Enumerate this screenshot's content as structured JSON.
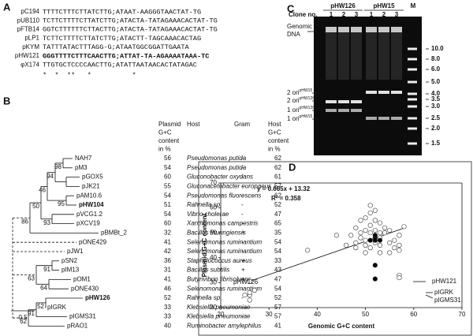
{
  "panel_a": {
    "label": "A",
    "rows": [
      [
        "pC194",
        "TTTTCTTTCTTATCTTG;ATAAT-AAGGGTAACTAT-TG"
      ],
      [
        "pUB110",
        "TCTTCTTTTCTTATCTTG;ATACTA-TATAGAAACACTAT-TG"
      ],
      [
        "pFTB14",
        "GGTCTTTTTTCTTACTTG;ATACTA-TATAGAAACACTAT-TG"
      ],
      [
        "pLP1",
        "TCTTCTTTTCTTATCTTG;ATACTT-TAGCAAACACTAG"
      ],
      [
        "pKYM",
        "TATTTATACTTTAGG-G;ATAATGGCGGATTGAATA"
      ],
      [
        "pHW121",
        "GGGTTTTCTTTCAACTTG;ATTAT-TA-AGAAAATAAA-TC"
      ],
      [
        "φX174",
        "TTGTGCTCCCCAACTTG;ATATTAATAACACTATAGAC"
      ]
    ],
    "conservation": "*  *  **   *          *"
  },
  "panel_b": {
    "label": "B",
    "headers": [
      [
        "Plasmid",
        "G+C",
        "content",
        "in %"
      ],
      [
        "Host"
      ],
      [
        "Gram"
      ],
      [
        "Host",
        "G+C",
        "content",
        "in %"
      ]
    ],
    "rows": [
      [
        "NAH7",
        56,
        "Pseudomonas putida",
        "-",
        62
      ],
      [
        "pM3",
        54,
        "Pseudomonas putida",
        "-",
        62
      ],
      [
        "pGOX5",
        60,
        "Gluconobacter oxydans",
        "-",
        61
      ],
      [
        "pJK21",
        55,
        "Gluconacetobacter europaeus",
        "-",
        57
      ],
      [
        "pAM10.6",
        54,
        "Pseudomonas fluorescens",
        "-",
        62
      ],
      [
        "pHW104",
        51,
        "Rahnella sp.",
        "-",
        52
      ],
      [
        "pVCG1.2",
        54,
        "Vibrio cholerae",
        "-",
        47
      ],
      [
        "pXCV19",
        60,
        "Xanthomonas campestris",
        "-",
        65
      ],
      [
        "pBMBt_2",
        32,
        "Bacillus thuringiensis",
        "+",
        35
      ],
      [
        "pONE429",
        41,
        "Selenomonas ruminantium",
        "-",
        54
      ],
      [
        "pJW1",
        42,
        "Selenomonas ruminantium",
        "-",
        54
      ],
      [
        "pSN2",
        36,
        "Staphylococcus aureus",
        "+",
        33
      ],
      [
        "pIM13",
        31,
        "Bacillus subtilis",
        "+",
        43
      ],
      [
        "pOM1",
        41,
        "Butyrivibrio fibrisolvens",
        "+",
        47
      ],
      [
        "pONE430",
        46,
        "Selenomonas ruminantium",
        "-",
        54
      ],
      [
        "pHW126",
        52,
        "Rahnella sp.",
        "-",
        52
      ],
      [
        "pIGRK",
        33,
        "Klebsiella pneumoniae",
        "-",
        57
      ],
      [
        "pIGMS31",
        33,
        "Klebsiella pneumoniae",
        "-",
        57
      ],
      [
        "pRAO1",
        40,
        "Ruminobacter amylophilus",
        "-",
        41
      ]
    ],
    "bootstrap": [
      98,
      94,
      95,
      46,
      93,
      50,
      86,
      91,
      63,
      64,
      52,
      91,
      62
    ],
    "scale": "0.5"
  },
  "panel_c": {
    "label": "C",
    "groups": [
      "pHW126",
      "pHW15",
      "M"
    ],
    "clone_label": "Clone no.",
    "clones": [
      "1",
      "2",
      "3",
      "1",
      "2",
      "3"
    ],
    "genomic": [
      "Genomic",
      "DNA"
    ],
    "ori_labels": [
      {
        "text": "2 ori",
        "sup": "pHW15"
      },
      {
        "text": "2 ori",
        "sup": "pHW126"
      },
      {
        "text": "1 ori",
        "sup": "pHW126"
      },
      {
        "text": "1 ori",
        "sup": "pHW15"
      }
    ],
    "marker_sizes": [
      "10.0",
      "8.0",
      "6.0",
      "5.0",
      "4.0",
      "3.5",
      "3.0",
      "2.5",
      "2.0",
      "1.5"
    ]
  },
  "chart_data": {
    "type": "scatter",
    "panel_label": "D",
    "x_label": "Genomic G+C content",
    "y_label": "Plasmid G+C content",
    "equation": "y = 0.665x + 13.32",
    "r_squared": "R² = 0.358",
    "xlim": [
      20,
      70
    ],
    "xticks": [
      20,
      30,
      40,
      50,
      60,
      70
    ],
    "ylim": [
      20,
      70
    ],
    "yticks": [
      20,
      30,
      40,
      50,
      60,
      70
    ],
    "series": [
      {
        "color": "#ffffff",
        "x": [
          26,
          26,
          26,
          25,
          27,
          26,
          38,
          44,
          46,
          47,
          48,
          48,
          48,
          49,
          49,
          50,
          50,
          50,
          50,
          51,
          51,
          51,
          51,
          51,
          52,
          52,
          52,
          52,
          53,
          53,
          53,
          53,
          54,
          54,
          55,
          55,
          56,
          56,
          57,
          57,
          57,
          58,
          57,
          57,
          55,
          49,
          50,
          53
        ],
        "values": [
          23,
          25,
          26,
          25,
          27,
          30.5,
          43,
          49,
          45,
          49,
          52,
          46,
          44,
          50,
          55,
          47,
          56,
          45,
          42,
          50,
          58,
          61,
          53,
          44,
          55,
          59,
          51,
          46,
          50,
          48,
          45,
          42,
          50,
          52,
          46,
          42,
          47,
          44,
          49,
          45,
          43,
          52.5,
          33,
          32,
          51,
          48,
          51,
          54
        ]
      },
      {
        "color": "#000000",
        "x": [
          52,
          52,
          52,
          53,
          51,
          52,
          52
        ],
        "values": [
          48,
          47,
          49,
          47,
          47,
          37,
          31.5
        ]
      }
    ],
    "trendline": {
      "x": [
        26,
        58
      ],
      "y": [
        30.6,
        51.9
      ]
    },
    "annotations": [
      "pHW121",
      "pHW126",
      "pIGRK",
      "pIGMS31"
    ]
  }
}
